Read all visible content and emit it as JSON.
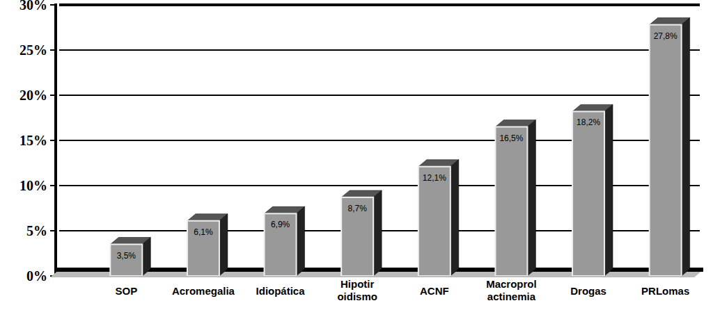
{
  "chart_data": {
    "type": "bar",
    "categories": [
      "SOP",
      "Acromegalia",
      "Idiopática",
      "Hipotiroidismo",
      "ACNF",
      "Macroprolactinemia",
      "Drogas",
      "PRLomas"
    ],
    "values": [
      3.5,
      6.1,
      6.9,
      8.7,
      12.1,
      16.5,
      18.2,
      27.8
    ],
    "value_labels": [
      "3,5%",
      "6,1%",
      "6,9%",
      "8,7%",
      "12,1%",
      "16,5%",
      "18,2%",
      "27,8%"
    ],
    "data_labels": true,
    "color": "#999999",
    "ylim": [
      0,
      30
    ],
    "yticks": [
      {
        "value": 0,
        "label": "0%"
      },
      {
        "value": 5,
        "label": "5%"
      },
      {
        "value": 10,
        "label": "10%"
      },
      {
        "value": 15,
        "label": "15%"
      },
      {
        "value": 20,
        "label": "20%"
      },
      {
        "value": 25,
        "label": "25%"
      },
      {
        "value": 30,
        "label": "30%"
      }
    ],
    "grid": true
  }
}
